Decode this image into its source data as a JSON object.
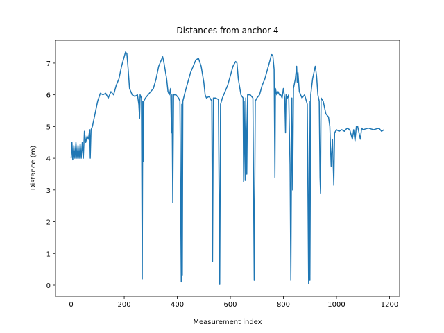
{
  "chart_data": {
    "type": "line",
    "title": "Distances from anchor 4",
    "x_label": "Measurement index",
    "y_label": "Distance (m)",
    "color": "#1f77b4",
    "x": [
      0,
      3,
      6,
      10,
      14,
      18,
      22,
      26,
      30,
      34,
      38,
      42,
      46,
      50,
      55,
      60,
      65,
      70,
      72,
      75,
      80,
      90,
      100,
      110,
      120,
      130,
      140,
      150,
      160,
      170,
      180,
      190,
      200,
      205,
      210,
      215,
      220,
      225,
      230,
      240,
      250,
      255,
      258,
      260,
      265,
      268,
      270,
      272,
      274,
      280,
      290,
      300,
      310,
      320,
      330,
      340,
      345,
      350,
      360,
      365,
      370,
      375,
      378,
      380,
      383,
      386,
      395,
      405,
      410,
      415,
      417,
      419,
      421,
      430,
      440,
      450,
      460,
      470,
      480,
      490,
      500,
      505,
      510,
      520,
      530,
      533,
      536,
      545,
      555,
      560,
      563,
      570,
      580,
      590,
      600,
      610,
      620,
      625,
      630,
      640,
      648,
      650,
      652,
      656,
      658,
      662,
      665,
      675,
      685,
      690,
      694,
      700,
      710,
      720,
      730,
      740,
      750,
      755,
      760,
      765,
      768,
      770,
      775,
      780,
      785,
      790,
      795,
      800,
      805,
      808,
      810,
      815,
      820,
      825,
      828,
      832,
      835,
      838,
      845,
      850,
      852,
      855,
      860,
      870,
      880,
      890,
      895,
      898,
      900,
      903,
      910,
      920,
      925,
      930,
      935,
      938,
      940,
      942,
      950,
      955,
      960,
      970,
      975,
      980,
      985,
      990,
      993,
      1000,
      1010,
      1020,
      1030,
      1040,
      1050,
      1060,
      1065,
      1070,
      1075,
      1080,
      1090,
      1095,
      1100,
      1120,
      1140,
      1160,
      1170,
      1179
    ],
    "values": [
      4.0,
      4.5,
      3.95,
      4.4,
      4.0,
      4.5,
      4.0,
      4.4,
      4.0,
      4.45,
      4.0,
      4.5,
      4.0,
      4.85,
      4.5,
      4.7,
      4.6,
      4.9,
      4.0,
      4.9,
      5.0,
      5.4,
      5.8,
      6.05,
      6.0,
      6.05,
      5.9,
      6.1,
      6.0,
      6.3,
      6.5,
      6.9,
      7.2,
      7.35,
      7.3,
      6.8,
      6.2,
      6.1,
      6.0,
      5.95,
      6.0,
      5.7,
      5.25,
      6.0,
      5.9,
      0.2,
      5.8,
      3.9,
      5.8,
      5.9,
      6.0,
      6.1,
      6.2,
      6.5,
      6.9,
      7.1,
      7.2,
      7.0,
      6.5,
      6.1,
      6.0,
      6.2,
      4.8,
      6.0,
      2.6,
      6.0,
      6.0,
      5.9,
      5.8,
      0.1,
      5.7,
      0.3,
      5.8,
      6.1,
      6.4,
      6.7,
      6.9,
      7.1,
      7.15,
      6.9,
      6.4,
      6.0,
      5.9,
      5.95,
      5.8,
      0.75,
      5.9,
      5.9,
      5.85,
      0.02,
      5.7,
      5.9,
      6.1,
      6.3,
      6.6,
      6.9,
      7.05,
      7.0,
      6.5,
      6.0,
      5.9,
      3.25,
      5.8,
      3.3,
      5.9,
      3.5,
      6.0,
      6.0,
      5.9,
      0.15,
      5.8,
      5.9,
      6.0,
      6.3,
      6.5,
      6.8,
      7.1,
      7.27,
      7.25,
      6.8,
      3.4,
      6.2,
      6.0,
      6.1,
      6.0,
      6.0,
      5.9,
      6.2,
      5.9,
      4.8,
      6.0,
      5.9,
      6.0,
      3.8,
      0.15,
      5.9,
      3.0,
      6.2,
      6.5,
      6.9,
      6.4,
      6.7,
      6.1,
      5.9,
      6.0,
      5.7,
      0.05,
      5.8,
      0.15,
      6.0,
      6.5,
      6.9,
      6.6,
      6.0,
      5.8,
      3.4,
      2.9,
      5.9,
      5.8,
      5.6,
      5.4,
      5.3,
      5.0,
      3.75,
      4.6,
      3.15,
      4.8,
      4.9,
      4.85,
      4.9,
      4.85,
      4.95,
      4.9,
      4.6,
      4.9,
      4.55,
      5.0,
      5.0,
      4.6,
      4.95,
      4.9,
      4.95,
      4.9,
      4.95,
      4.85,
      4.9
    ],
    "xlim": [
      -59,
      1238
    ],
    "ylim": [
      -0.35,
      7.72
    ],
    "xticks": [
      0,
      200,
      400,
      600,
      800,
      1000,
      1200
    ],
    "yticks": [
      0,
      1,
      2,
      3,
      4,
      5,
      6,
      7
    ]
  }
}
